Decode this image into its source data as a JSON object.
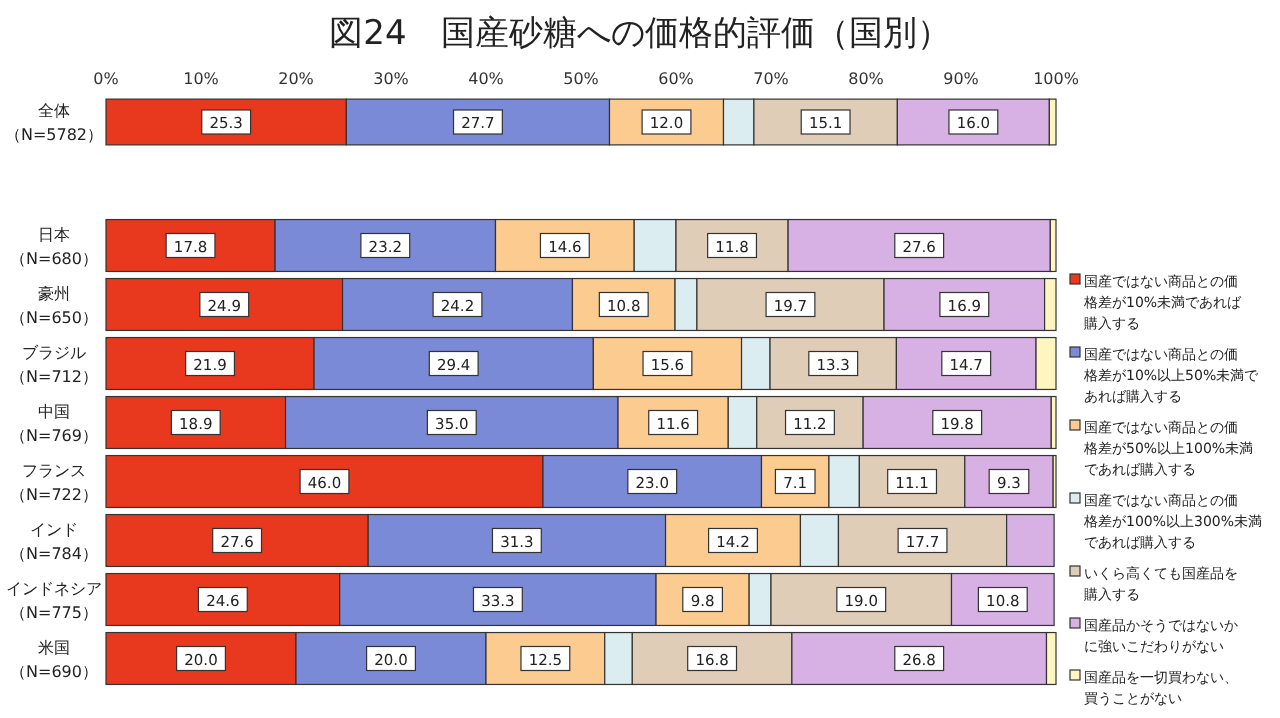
{
  "chart_data": [
    {
      "type": "bar",
      "title": "図24　国産砂糖への価格的評価（国別）",
      "orientation": "horizontal",
      "stacked": true,
      "categories": [
        "全体（N=5782）"
      ],
      "xlim": [
        0,
        100
      ],
      "xticks": [
        {
          "value": 0,
          "label": "0%"
        },
        {
          "value": 10,
          "label": "10%"
        },
        {
          "value": 20,
          "label": "20%"
        },
        {
          "value": 30,
          "label": "30%"
        },
        {
          "value": 40,
          "label": "40%"
        },
        {
          "value": 50,
          "label": "50%"
        },
        {
          "value": 60,
          "label": "60%"
        },
        {
          "value": 70,
          "label": "70%"
        },
        {
          "value": 80,
          "label": "80%"
        },
        {
          "value": 90,
          "label": "90%"
        },
        {
          "value": 100,
          "label": "100%"
        }
      ],
      "series": [
        {
          "color": "#e8381e",
          "values": [
            25.3
          ],
          "value_labels": [
            "25.3"
          ]
        },
        {
          "color": "#7b8ad6",
          "values": [
            27.7
          ],
          "value_labels": [
            "27.7"
          ]
        },
        {
          "color": "#fccb90",
          "values": [
            12.0
          ],
          "value_labels": [
            "12.0"
          ]
        },
        {
          "color": "#dcedf2",
          "values": [
            3.2
          ],
          "value_labels": [
            null
          ]
        },
        {
          "color": "#e0cdb8",
          "values": [
            15.1
          ],
          "value_labels": [
            "15.1"
          ]
        },
        {
          "color": "#d7b0e4",
          "values": [
            16.0
          ],
          "value_labels": [
            "16.0"
          ]
        },
        {
          "color": "#fff5c0",
          "values": [
            0.7
          ],
          "value_labels": [
            null
          ]
        }
      ]
    },
    {
      "type": "bar",
      "orientation": "horizontal",
      "stacked": true,
      "tick_labels": "y",
      "legend": "right",
      "categories": [
        "日本（N=680）",
        "豪州（N=650）",
        "ブラジル（N=712）",
        "中国（N=769）",
        "フランス（N=722）",
        "インド（N=784）",
        "インドネシア（N=775）",
        "米国（N=690）"
      ],
      "xlim": [
        0,
        100
      ],
      "series": [
        {
          "name": "国産ではない商品との価格差が10%未満であれば購入する",
          "color": "#e8381e",
          "values": [
            17.8,
            24.9,
            21.9,
            18.9,
            46.0,
            27.6,
            24.6,
            20.0
          ],
          "value_labels": [
            "17.8",
            "24.9",
            "21.9",
            "18.9",
            "46.0",
            "27.6",
            "24.6",
            "20.0"
          ]
        },
        {
          "name": "国産ではない商品との価格差が10%以上50%未満であれば購入する",
          "color": "#7b8ad6",
          "values": [
            23.2,
            24.2,
            29.4,
            35.0,
            23.0,
            31.3,
            33.3,
            20.0
          ],
          "value_labels": [
            "23.2",
            "24.2",
            "29.4",
            "35.0",
            "23.0",
            "31.3",
            "33.3",
            "20.0"
          ]
        },
        {
          "name": "国産ではない商品との価格差が50%以上100%未満であれば購入する",
          "color": "#fccb90",
          "values": [
            14.6,
            10.8,
            15.6,
            11.6,
            7.1,
            14.2,
            9.8,
            12.5
          ],
          "value_labels": [
            "14.6",
            "10.8",
            "15.6",
            "11.6",
            "7.1",
            "14.2",
            "9.8",
            "12.5"
          ]
        },
        {
          "name": "国産ではない商品との価格差が100%以上300%未満であれば購入する",
          "color": "#dcedf2",
          "values": [
            4.4,
            2.3,
            3.0,
            3.0,
            3.2,
            4.0,
            2.3,
            2.9
          ],
          "value_labels": [
            null,
            null,
            null,
            null,
            null,
            null,
            null,
            null
          ]
        },
        {
          "name": "いくら高くても国産品を購入する",
          "color": "#e0cdb8",
          "values": [
            11.8,
            19.7,
            13.3,
            11.2,
            11.1,
            17.7,
            19.0,
            16.8
          ],
          "value_labels": [
            "11.8",
            "19.7",
            "13.3",
            "11.2",
            "11.1",
            "17.7",
            "19.0",
            "16.8"
          ]
        },
        {
          "name": "国産品かそうではないかに強いこだわりがない",
          "color": "#d7b0e4",
          "values": [
            27.6,
            16.9,
            14.7,
            19.8,
            9.3,
            5.0,
            10.8,
            26.8
          ],
          "value_labels": [
            "27.6",
            "16.9",
            "14.7",
            "19.8",
            "9.3",
            null,
            "10.8",
            "26.8"
          ]
        },
        {
          "name": "国産品を一切買わない、買うことがない",
          "color": "#fff5c0",
          "values": [
            0.6,
            1.2,
            2.1,
            0.5,
            0.3,
            null,
            null,
            1.0
          ],
          "value_labels": [
            null,
            null,
            null,
            null,
            null,
            null,
            null,
            null
          ]
        }
      ]
    }
  ]
}
